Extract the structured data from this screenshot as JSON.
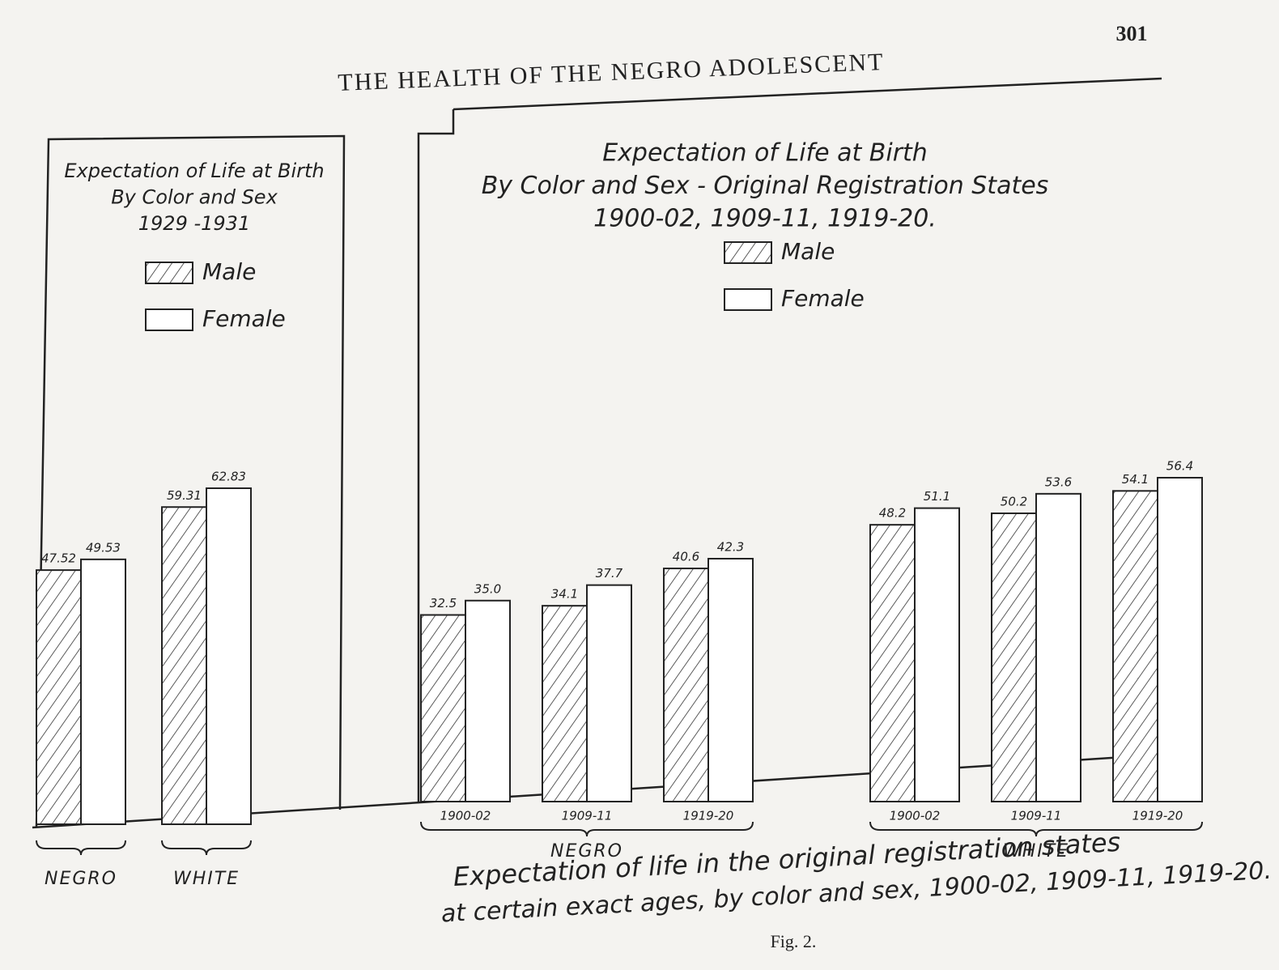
{
  "page_number": "301",
  "running_head": "THE HEALTH OF THE NEGRO ADOLESCENT",
  "caption": [
    "Expectation of life in the original registration states",
    "at certain exact ages, by color and sex, 1900-02, 1909-11, 1919-20."
  ],
  "figure_label": "Fig. 2.",
  "chart_data": [
    {
      "type": "bar",
      "title": "Expectation of Life at Birth",
      "subtitle": [
        "By Color and Sex",
        "1929 -1931"
      ],
      "categories": [
        "NEGRO",
        "WHITE"
      ],
      "series": [
        {
          "name": "Male",
          "color": "#ffffff",
          "pattern": "hatch",
          "values": [
            47.52,
            59.31
          ]
        },
        {
          "name": "Female",
          "color": "#ffffff",
          "values": [
            49.53,
            62.83
          ]
        }
      ],
      "legend": "top"
    },
    {
      "type": "bar",
      "title": "Expectation of Life at Birth",
      "subtitle": [
        "By Color and Sex - Original Registration States",
        "1900-02, 1909-11, 1919-20."
      ],
      "categories": [
        "1900-02",
        "1909-11",
        "1919-20",
        "1900-02",
        "1909-11",
        "1919-20"
      ],
      "group_labels": [
        "NEGRO",
        "WHITE"
      ],
      "series": [
        {
          "name": "Male",
          "color": "#ffffff",
          "pattern": "hatch",
          "values": [
            32.5,
            34.1,
            40.6,
            48.2,
            50.2,
            54.1
          ]
        },
        {
          "name": "Female",
          "color": "#ffffff",
          "values": [
            35,
            37.7,
            42.3,
            51.1,
            53.6,
            56.4
          ],
          "value_labels": [
            "35.0",
            "37.7",
            "42.3",
            "51.1",
            "53.6",
            "56.4"
          ]
        }
      ],
      "legend": "top"
    }
  ]
}
